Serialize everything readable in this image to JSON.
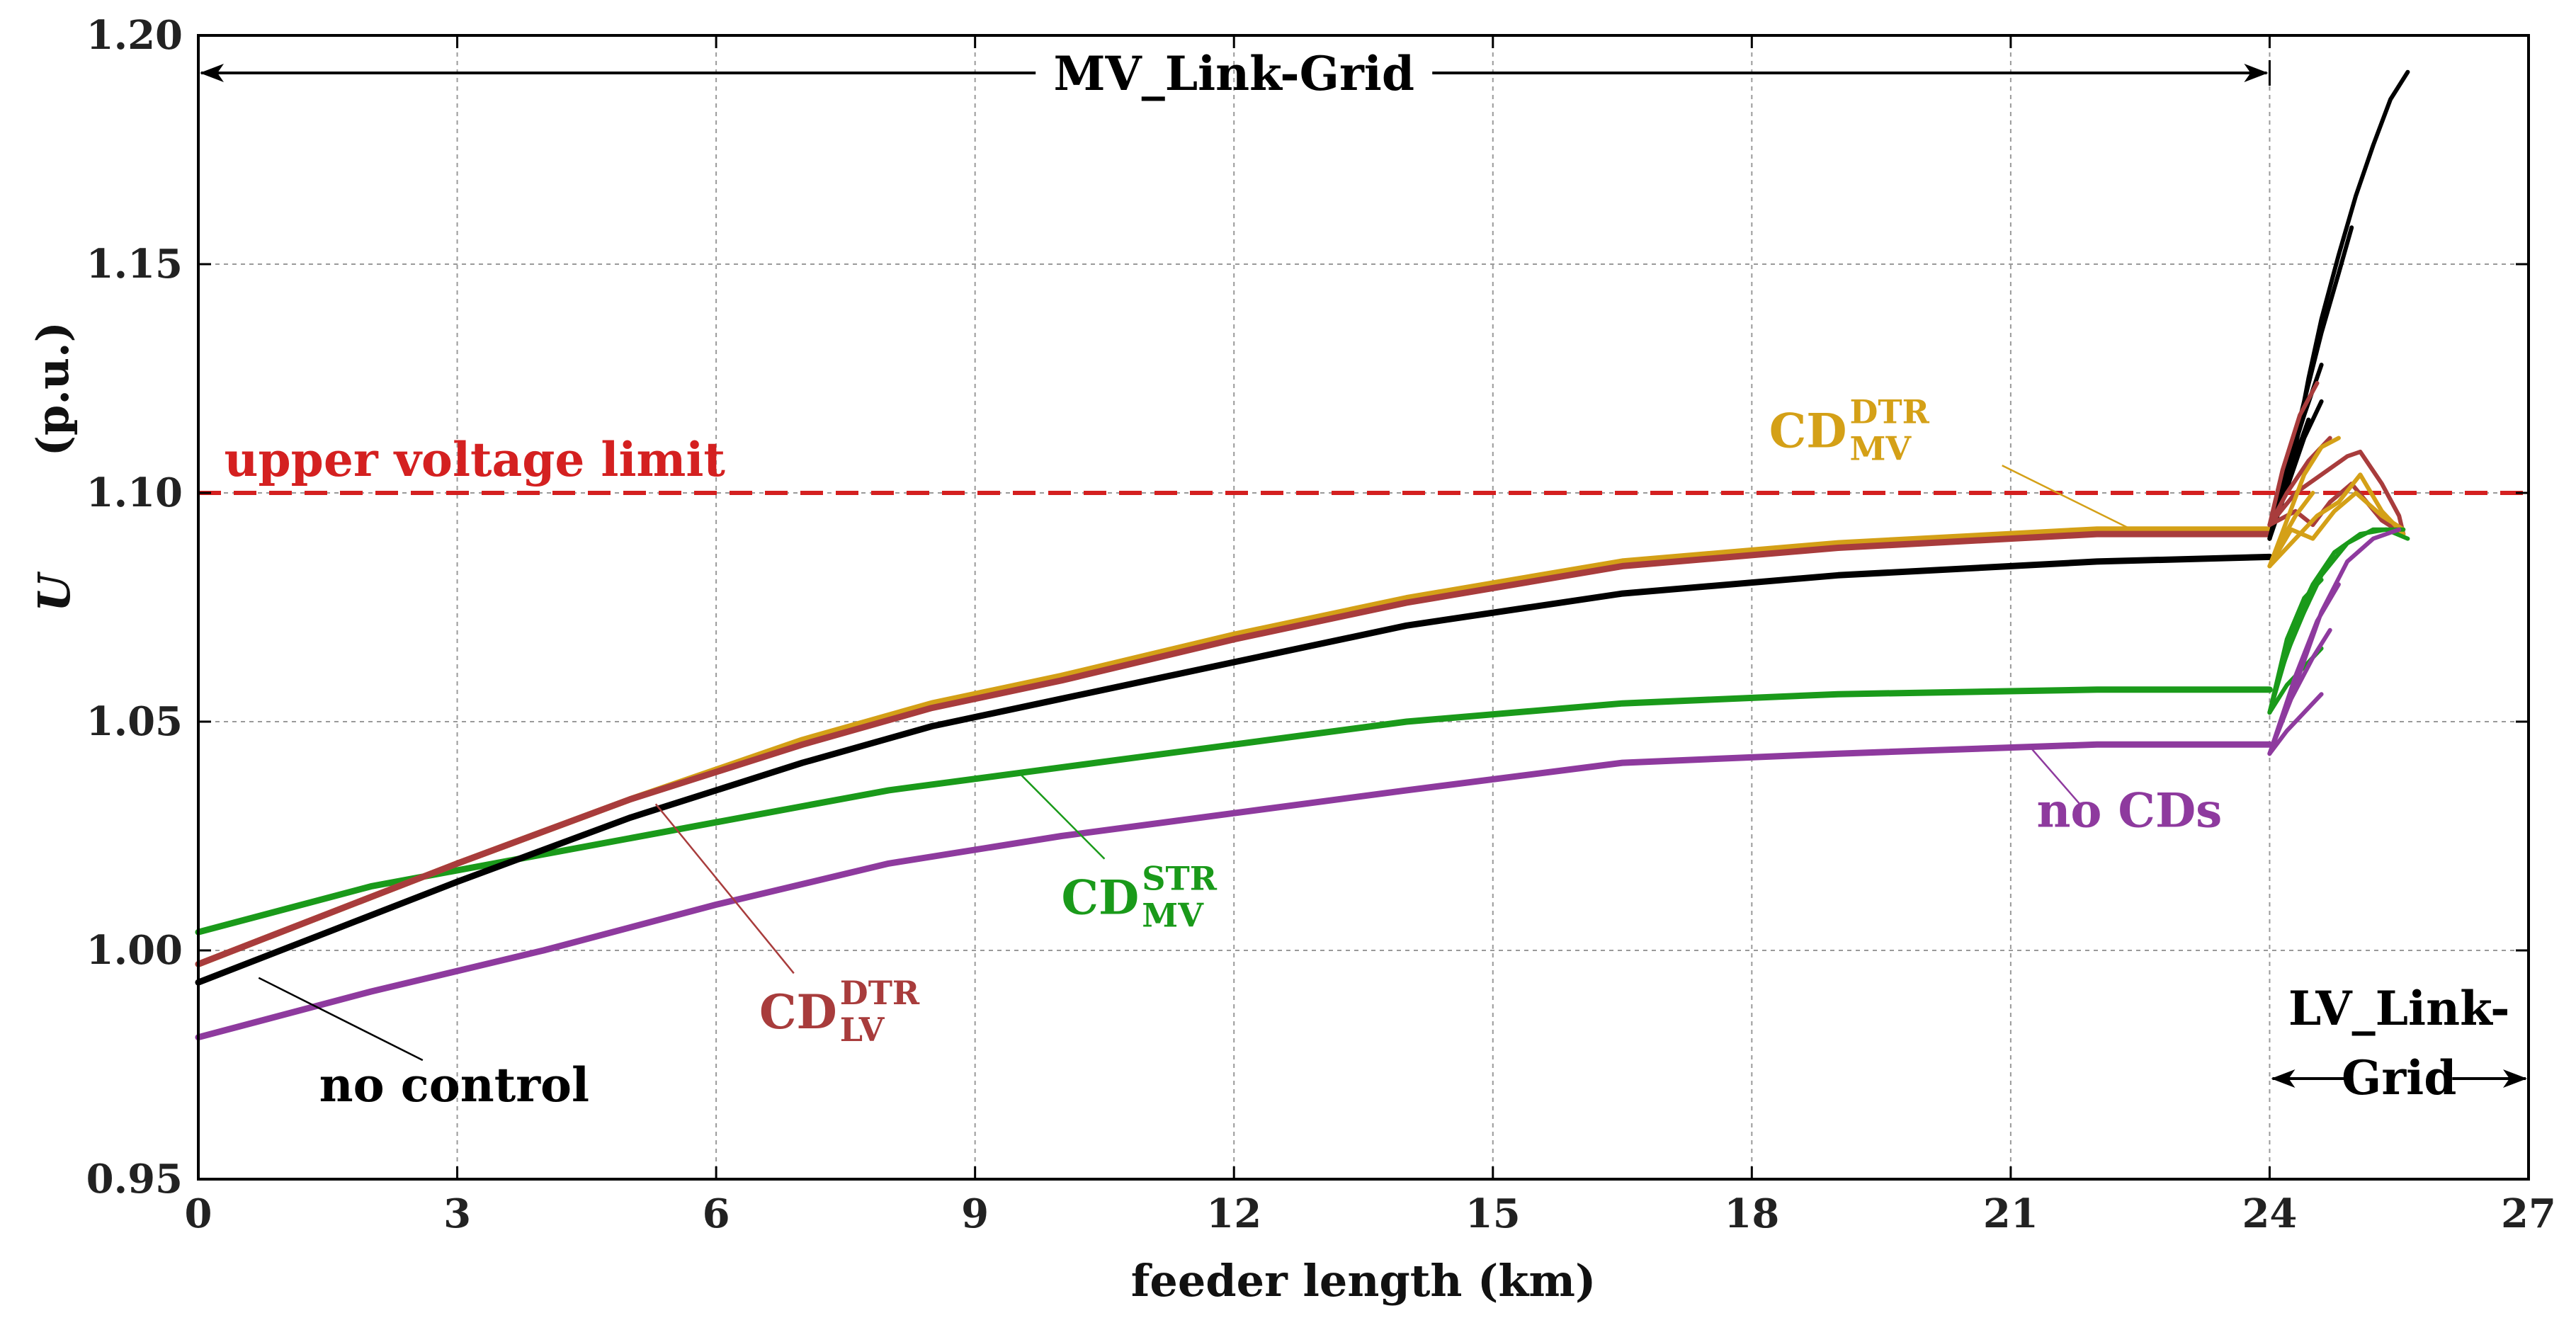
{
  "chart_data": {
    "type": "line",
    "xlabel": "feeder length  (km)",
    "ylabel_symbol": "U",
    "ylabel_unit": "(p.u.)",
    "xlim": [
      0,
      27
    ],
    "ylim": [
      0.95,
      1.2
    ],
    "x_ticks": [
      0,
      3,
      6,
      9,
      12,
      15,
      18,
      21,
      24,
      27
    ],
    "y_ticks": [
      0.95,
      1.0,
      1.05,
      1.1,
      1.15,
      1.2
    ],
    "x_tick_labels": [
      "0",
      "3",
      "6",
      "9",
      "12",
      "15",
      "18",
      "21",
      "24",
      "27"
    ],
    "y_tick_labels": [
      "0.95",
      "1.00",
      "1.05",
      "1.10",
      "1.15",
      "1.20"
    ],
    "grid": true,
    "colors": {
      "no_control": "#000000",
      "cd_lv_dtr": "#a83c3c",
      "cd_mv_dtr": "#d4a017",
      "cd_mv_str": "#1a9a1a",
      "no_cds": "#8e3a9e",
      "limit": "#d42020"
    },
    "limit": {
      "value": 1.1,
      "label": "upper voltage limit"
    },
    "regions": [
      {
        "label": "MV_Link-Grid",
        "from": 0,
        "to": 24
      },
      {
        "label_line1": "LV_Link-",
        "label_line2": "Grid",
        "from": 24,
        "to": 27
      }
    ],
    "series": [
      {
        "name": "no control",
        "key": "no_control",
        "x": [
          0,
          1.5,
          3,
          5,
          7,
          8.5,
          10,
          12,
          14,
          16.5,
          19,
          22,
          24
        ],
        "y": [
          0.993,
          1.004,
          1.015,
          1.029,
          1.041,
          1.049,
          1.055,
          1.063,
          1.071,
          1.078,
          1.082,
          1.085,
          1.086
        ]
      },
      {
        "name": "CD LV DTR",
        "key": "cd_lv_dtr",
        "x": [
          0,
          1.5,
          3,
          5,
          7,
          8.5,
          10,
          12,
          14,
          16.5,
          19,
          22,
          24
        ],
        "y": [
          0.997,
          1.008,
          1.019,
          1.033,
          1.045,
          1.053,
          1.059,
          1.068,
          1.076,
          1.084,
          1.088,
          1.091,
          1.091
        ]
      },
      {
        "name": "CD MV DTR",
        "key": "cd_mv_dtr",
        "x": [
          0,
          1.5,
          3,
          5,
          7,
          8.5,
          10,
          12,
          14,
          16.5,
          19,
          22,
          24
        ],
        "y": [
          0.997,
          1.008,
          1.019,
          1.033,
          1.046,
          1.054,
          1.06,
          1.069,
          1.077,
          1.085,
          1.089,
          1.092,
          1.092
        ]
      },
      {
        "name": "CD MV STR",
        "key": "cd_mv_str",
        "x": [
          0,
          2,
          4,
          6,
          8,
          10,
          12,
          14,
          16.5,
          19,
          22,
          24
        ],
        "y": [
          1.004,
          1.014,
          1.021,
          1.028,
          1.035,
          1.04,
          1.045,
          1.05,
          1.054,
          1.056,
          1.057,
          1.057
        ]
      },
      {
        "name": "no CDs",
        "key": "no_cds",
        "x": [
          0,
          2,
          4,
          6,
          8,
          10,
          12,
          14,
          16.5,
          19,
          22,
          24
        ],
        "y": [
          0.981,
          0.991,
          1.0,
          1.01,
          1.019,
          1.025,
          1.03,
          1.035,
          1.041,
          1.043,
          1.045,
          1.045
        ]
      }
    ],
    "lv_branches": [
      {
        "key": "no_control",
        "x": [
          24,
          24.15,
          24.3,
          24.45,
          24.6,
          24.8,
          25.0,
          25.2,
          25.4,
          25.6
        ],
        "y": [
          1.09,
          1.1,
          1.11,
          1.125,
          1.138,
          1.152,
          1.165,
          1.176,
          1.186,
          1.192
        ]
      },
      {
        "key": "no_control",
        "x": [
          24,
          24.2,
          24.4,
          24.6,
          24.8,
          24.95
        ],
        "y": [
          1.09,
          1.105,
          1.12,
          1.135,
          1.148,
          1.158
        ]
      },
      {
        "key": "no_control",
        "x": [
          24,
          24.2,
          24.4,
          24.6
        ],
        "y": [
          1.09,
          1.105,
          1.117,
          1.128
        ]
      },
      {
        "key": "no_control",
        "x": [
          24,
          24.2,
          24.4,
          24.6
        ],
        "y": [
          1.09,
          1.101,
          1.112,
          1.12
        ]
      },
      {
        "key": "no_control",
        "x": [
          24,
          24.15,
          24.3,
          24.45
        ],
        "y": [
          1.09,
          1.1,
          1.108,
          1.116
        ]
      },
      {
        "key": "cd_lv_dtr",
        "x": [
          24,
          24.15,
          24.35,
          24.55
        ],
        "y": [
          1.093,
          1.105,
          1.117,
          1.124
        ]
      },
      {
        "key": "cd_lv_dtr",
        "x": [
          24,
          24.3,
          24.6,
          24.9,
          25.05,
          25.3,
          25.5,
          25.55
        ],
        "y": [
          1.093,
          1.1,
          1.104,
          1.108,
          1.109,
          1.102,
          1.095,
          1.091
        ]
      },
      {
        "key": "cd_lv_dtr",
        "x": [
          24,
          24.2,
          24.45,
          24.7
        ],
        "y": [
          1.093,
          1.1,
          1.107,
          1.112
        ]
      },
      {
        "key": "cd_lv_dtr",
        "x": [
          24,
          24.3,
          24.5,
          24.7,
          24.95,
          25.3,
          25.55
        ],
        "y": [
          1.093,
          1.096,
          1.093,
          1.098,
          1.102,
          1.094,
          1.091
        ]
      },
      {
        "key": "cd_mv_dtr",
        "x": [
          24,
          24.2,
          24.4,
          24.6,
          24.8
        ],
        "y": [
          1.084,
          1.094,
          1.104,
          1.11,
          1.112
        ]
      },
      {
        "key": "cd_mv_dtr",
        "x": [
          24,
          24.3,
          24.55,
          24.8,
          25.05,
          25.3,
          25.55
        ],
        "y": [
          1.084,
          1.09,
          1.095,
          1.098,
          1.104,
          1.096,
          1.091
        ]
      },
      {
        "key": "cd_mv_dtr",
        "x": [
          24,
          24.25,
          24.5,
          24.75,
          25.0,
          25.3,
          25.55
        ],
        "y": [
          1.084,
          1.092,
          1.09,
          1.096,
          1.1,
          1.095,
          1.092
        ]
      },
      {
        "key": "cd_mv_dtr",
        "x": [
          24,
          24.15,
          24.3,
          24.5
        ],
        "y": [
          1.084,
          1.09,
          1.095,
          1.1
        ]
      },
      {
        "key": "cd_mv_str",
        "x": [
          24,
          24.2,
          24.4,
          24.6,
          24.9,
          25.2,
          25.55
        ],
        "y": [
          1.052,
          1.065,
          1.074,
          1.082,
          1.089,
          1.092,
          1.092
        ]
      },
      {
        "key": "cd_mv_str",
        "x": [
          24,
          24.2,
          24.4,
          24.6
        ],
        "y": [
          1.052,
          1.068,
          1.077,
          1.081
        ]
      },
      {
        "key": "cd_mv_str",
        "x": [
          24,
          24.2,
          24.4,
          24.6
        ],
        "y": [
          1.052,
          1.058,
          1.062,
          1.066
        ]
      },
      {
        "key": "cd_mv_str",
        "x": [
          24,
          24.15,
          24.3,
          24.45
        ],
        "y": [
          1.052,
          1.062,
          1.07,
          1.076
        ]
      },
      {
        "key": "cd_mv_str",
        "x": [
          24,
          24.25,
          24.5,
          24.75,
          25.05,
          25.35,
          25.6
        ],
        "y": [
          1.052,
          1.07,
          1.08,
          1.087,
          1.091,
          1.092,
          1.09
        ]
      },
      {
        "key": "no_cds",
        "x": [
          24,
          24.2,
          24.4,
          24.6
        ],
        "y": [
          1.043,
          1.048,
          1.052,
          1.056
        ]
      },
      {
        "key": "no_cds",
        "x": [
          24,
          24.25,
          24.5,
          24.7
        ],
        "y": [
          1.043,
          1.055,
          1.064,
          1.07
        ]
      },
      {
        "key": "no_cds",
        "x": [
          24,
          24.3,
          24.6,
          24.9,
          25.2,
          25.5
        ],
        "y": [
          1.043,
          1.058,
          1.074,
          1.085,
          1.09,
          1.092
        ]
      },
      {
        "key": "no_cds",
        "x": [
          24,
          24.3,
          24.55,
          24.8
        ],
        "y": [
          1.043,
          1.06,
          1.072,
          1.08
        ]
      }
    ],
    "annotations": [
      {
        "key": "no_control",
        "main": "no control",
        "sup": "",
        "sub": "",
        "text_x": 1.4,
        "text_y": 0.967,
        "leader_from": [
          0.7,
          0.994
        ],
        "leader_to": [
          2.6,
          0.976
        ]
      },
      {
        "key": "cd_lv_dtr",
        "main": "CD",
        "sup": "DTR",
        "sub": "LV",
        "text_x": 6.5,
        "text_y": 0.983,
        "leader_from": [
          5.3,
          1.032
        ],
        "leader_to": [
          6.9,
          0.995
        ]
      },
      {
        "key": "cd_mv_dtr",
        "main": "CD",
        "sup": "DTR",
        "sub": "MV",
        "text_x": 18.2,
        "text_y": 1.11,
        "leader_from": [
          22.4,
          1.092
        ],
        "leader_to": [
          20.9,
          1.106
        ]
      },
      {
        "key": "cd_mv_str",
        "main": "CD",
        "sup": "STR",
        "sub": "MV",
        "text_x": 10.0,
        "text_y": 1.008,
        "leader_from": [
          9.5,
          1.039
        ],
        "leader_to": [
          10.5,
          1.02
        ]
      },
      {
        "key": "no_cds",
        "main": "no CDs",
        "sup": "",
        "sub": "",
        "text_x": 21.3,
        "text_y": 1.027,
        "leader_from": [
          21.2,
          1.045
        ],
        "leader_to": [
          21.8,
          1.032
        ]
      }
    ]
  }
}
